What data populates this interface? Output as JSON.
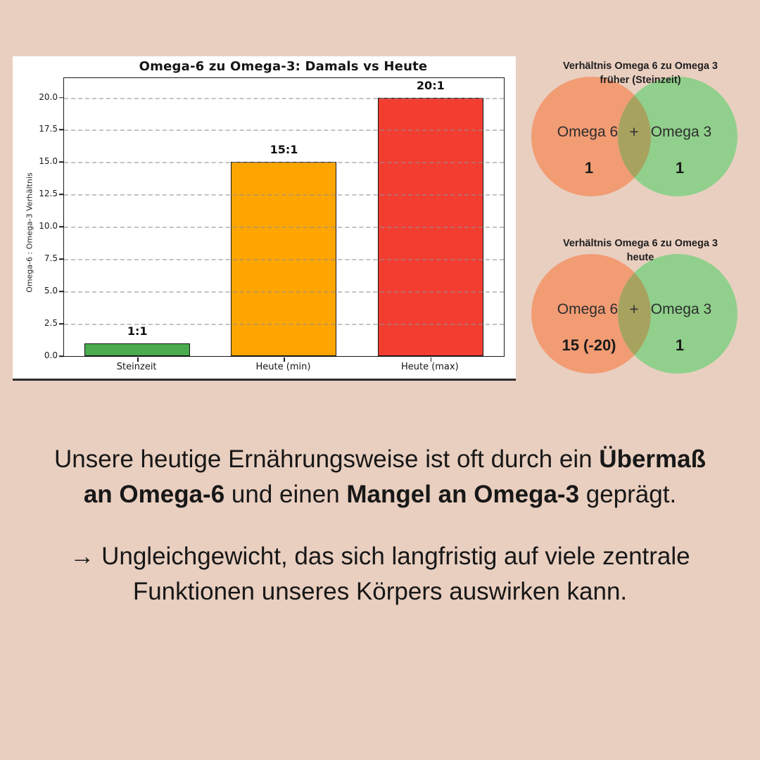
{
  "page": {
    "background_color": "#e9cfc0",
    "card_color": "#ffffff"
  },
  "chart_data": {
    "type": "bar",
    "title": "Omega-6 zu Omega-3: Damals vs Heute",
    "xlabel": "",
    "ylabel": "Omega-6 : Omega-3 Verhältnis",
    "categories": [
      "Steinzeit",
      "Heute (min)",
      "Heute (max)"
    ],
    "values": [
      1,
      15,
      20
    ],
    "value_labels": [
      "1:1",
      "15:1",
      "20:1"
    ],
    "bar_colors": [
      "#4aab4f",
      "#ffa500",
      "#f23d31"
    ],
    "bar_edge_color": "#141414",
    "ylim": [
      0,
      21.5
    ],
    "yticks": [
      "0.0",
      "2.5",
      "5.0",
      "7.5",
      "10.0",
      "12.5",
      "15.0",
      "17.5",
      "20.0"
    ],
    "grid": "horizontal dashed gray",
    "legend": "none"
  },
  "venn_former": {
    "title_line1": "Verhältnis Omega 6 zu Omega 3",
    "title_line2": "früher (Steinzeit)",
    "left_label": "Omega 6",
    "plus_sign": "+",
    "right_label": "Omega 3",
    "left_value": "1",
    "right_value": "1",
    "left_color": "#f29c74",
    "right_color": "#90d08c",
    "overlap_color": "#a7a35f"
  },
  "venn_today": {
    "title_line1": "Verhältnis Omega 6 zu Omega 3",
    "title_line2": "heute",
    "left_label": "Omega 6",
    "plus_sign": "+",
    "right_label": "Omega 3",
    "left_value": "15 (-20)",
    "right_value": "1",
    "left_color": "#f29c74",
    "right_color": "#90d08c",
    "overlap_color": "#a7a35f"
  },
  "text": {
    "p1_seg1": "Unsere heutige Ernährungsweise ist oft durch ein ",
    "p1_bold1": "Übermaß an Omega-6",
    "p1_seg2": " und einen ",
    "p1_bold2": "Mangel an Omega-3",
    "p1_seg3": " geprägt.",
    "p2": "→ Ungleichgewicht, das sich langfristig auf viele zentrale Funktionen unseres Körpers auswirken kann."
  }
}
